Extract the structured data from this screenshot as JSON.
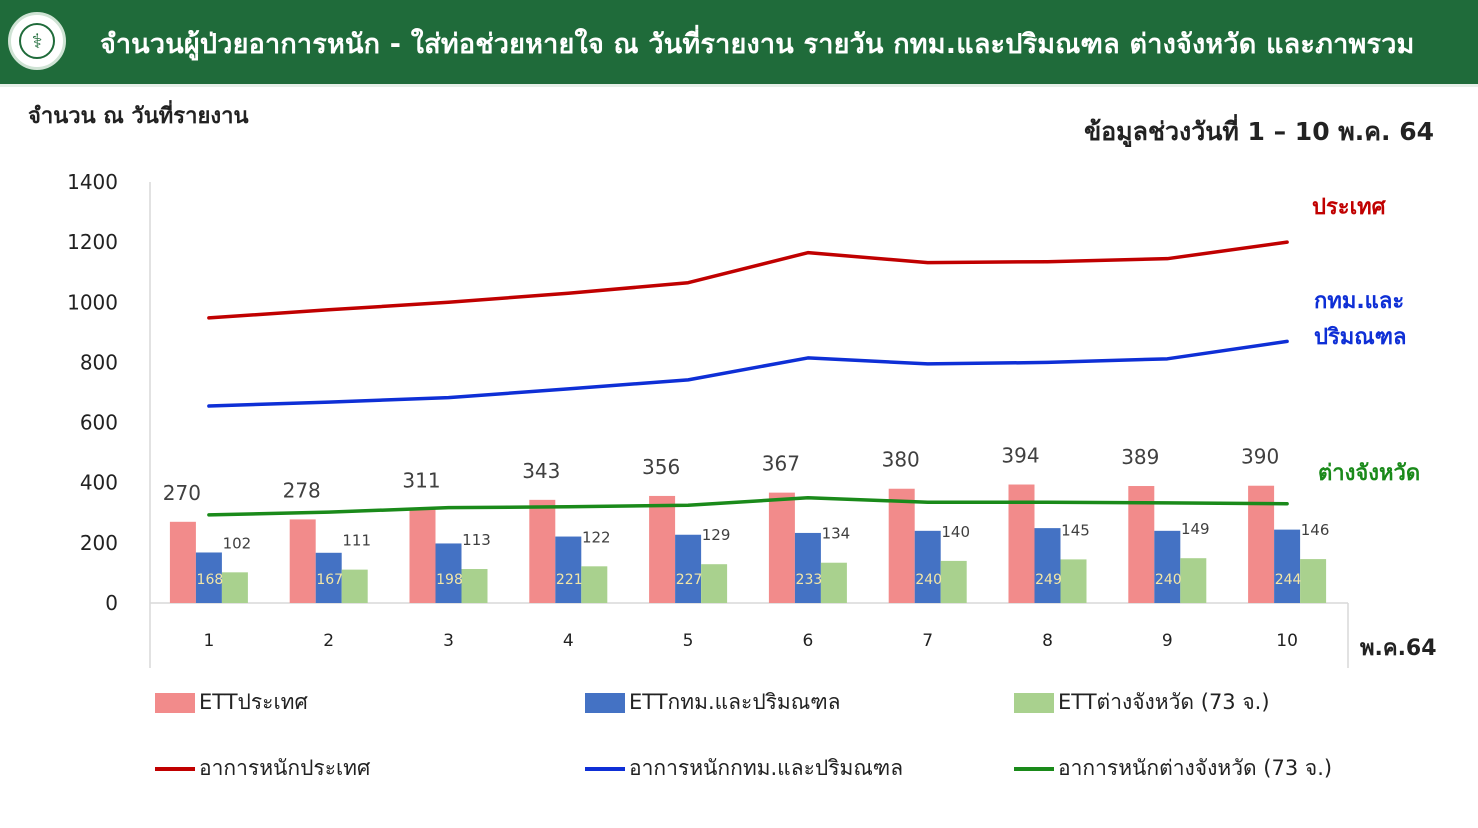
{
  "header": {
    "title": "จำนวนผู้ป่วยอาการหนัก - ใส่ท่อช่วยหายใจ ณ วันที่รายงาน รายวัน กทม.และปริมณฑล ต่างจังหวัด และภาพรวม",
    "logo_icon": "moph-caduceus-icon"
  },
  "colors": {
    "header_bg": "#1f6b3a",
    "ett_country": "#f28b8b",
    "ett_bkk": "#4472c4",
    "ett_province": "#a9d18e",
    "line_country": "#c00000",
    "line_bkk": "#0e2fd6",
    "line_province": "#1a8a1a"
  },
  "chart_data": {
    "type": "bar",
    "ylabel": "จำนวน ณ วันที่รายงาน",
    "date_range": "ข้อมูลช่วงวันที่ 1 – 10 พ.ค. 64",
    "xunit": "พ.ค.64",
    "ylim": [
      0,
      1400
    ],
    "yticks": [
      0,
      200,
      400,
      600,
      800,
      1000,
      1200,
      1400
    ],
    "categories": [
      "1",
      "2",
      "3",
      "4",
      "5",
      "6",
      "7",
      "8",
      "9",
      "10"
    ],
    "bar_series": [
      {
        "name": "ETTประเทศ",
        "values": [
          270,
          278,
          311,
          343,
          356,
          367,
          380,
          394,
          389,
          390
        ]
      },
      {
        "name": "ETTกทม.และปริมณฑล",
        "values": [
          168,
          167,
          198,
          221,
          227,
          233,
          240,
          249,
          240,
          244
        ]
      },
      {
        "name": "ETTต่างจังหวัด (73 จ.)",
        "values": [
          102,
          111,
          113,
          122,
          129,
          134,
          140,
          145,
          149,
          146
        ]
      }
    ],
    "line_series": [
      {
        "name": "อาการหนักประเทศ",
        "label": "ประเทศ",
        "values": [
          948,
          975,
          1000,
          1030,
          1065,
          1165,
          1132,
          1135,
          1145,
          1200
        ]
      },
      {
        "name": "อาการหนักกทม.และปริมณฑล",
        "label_line1": "กทม.และ",
        "label_line2": "ปริมณฑล",
        "values": [
          655,
          668,
          683,
          712,
          742,
          815,
          795,
          800,
          812,
          870
        ]
      },
      {
        "name": "อาการหนักต่างจังหวัด (73 จ.)",
        "label": "ต่างจังหวัด",
        "values": [
          293,
          302,
          317,
          320,
          325,
          350,
          335,
          335,
          333,
          330
        ]
      }
    ],
    "grid": false,
    "legend_position": "bottom"
  }
}
